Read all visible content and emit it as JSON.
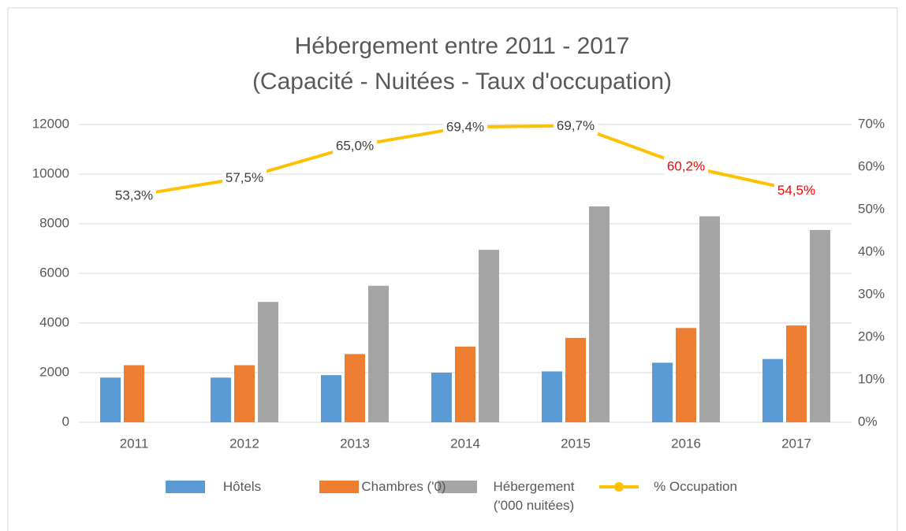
{
  "chart_data": {
    "type": "bar",
    "title": "Hébergement entre 2011 - 2017",
    "subtitle": "(Capacité - Nuitées - Taux d'occupation)",
    "categories": [
      "2011",
      "2012",
      "2013",
      "2014",
      "2015",
      "2016",
      "2017"
    ],
    "series": [
      {
        "name": "Hôtels",
        "color": "#5b9bd5",
        "type": "bar",
        "values": [
          1800,
          1800,
          1900,
          2000,
          2050,
          2400,
          2550
        ]
      },
      {
        "name": "Chambres ('0)",
        "color": "#ed7d31",
        "type": "bar",
        "values": [
          2300,
          2300,
          2750,
          3050,
          3400,
          3800,
          3900
        ]
      },
      {
        "name": "Hébergement ('000 nuitées)",
        "color": "#a5a5a5",
        "type": "bar",
        "values": [
          null,
          4850,
          5500,
          6950,
          8700,
          8300,
          7750
        ]
      },
      {
        "name": "% Occupation",
        "color": "#ffc000",
        "type": "line",
        "axis": "y2",
        "values": [
          53.3,
          57.5,
          65.0,
          69.4,
          69.7,
          60.2,
          54.5
        ],
        "value_labels": [
          "53,3%",
          "57,5%",
          "65,0%",
          "69,4%",
          "69,7%",
          "60,2%",
          "54,5%"
        ],
        "value_label_colors": [
          "#404040",
          "#404040",
          "#404040",
          "#404040",
          "#404040",
          "#ff0000",
          "#ff0000"
        ]
      }
    ],
    "ylim": [
      0,
      12000
    ],
    "yticks": [
      0,
      2000,
      4000,
      6000,
      8000,
      10000,
      12000
    ],
    "y2lim": [
      0,
      70
    ],
    "y2ticks": [
      {
        "value": 0,
        "label": "0%"
      },
      {
        "value": 10,
        "label": "10%"
      },
      {
        "value": 20,
        "label": "20%"
      },
      {
        "value": 30,
        "label": "30%"
      },
      {
        "value": 40,
        "label": "40%"
      },
      {
        "value": 50,
        "label": "50%"
      },
      {
        "value": 60,
        "label": "60%"
      },
      {
        "value": 70,
        "label": "70%"
      }
    ],
    "grid": true,
    "legend": "bottom"
  }
}
